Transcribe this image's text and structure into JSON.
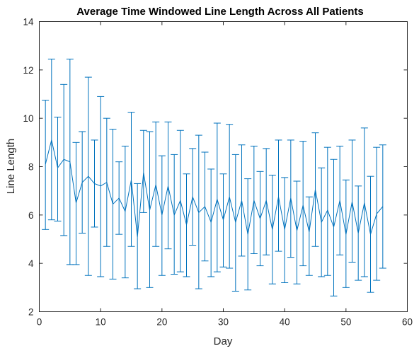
{
  "chart_data": {
    "type": "line",
    "title": "Average Time Windowed Line Length Across All Patients",
    "xlabel": "Day",
    "ylabel": "Line Length",
    "xlim": [
      0,
      60
    ],
    "ylim": [
      2,
      14
    ],
    "xticks": [
      "0",
      "10",
      "20",
      "30",
      "40",
      "50",
      "60"
    ],
    "yticks": [
      "2",
      "4",
      "6",
      "8",
      "10",
      "12",
      "14"
    ],
    "grid": false,
    "line_color": "#0072BD",
    "series": [
      {
        "x": [
          1,
          2,
          3,
          4,
          5,
          6,
          7,
          8,
          9,
          10,
          11,
          12,
          13,
          14,
          15,
          16,
          17,
          18,
          19,
          20,
          21,
          22,
          23,
          24,
          25,
          26,
          27,
          28,
          29,
          30,
          31,
          32,
          33,
          34,
          35,
          36,
          37,
          38,
          39,
          40,
          41,
          42,
          43,
          44,
          45,
          46,
          47,
          48,
          49,
          50,
          51,
          52,
          53,
          54,
          55,
          56
        ],
        "mean": [
          8.1,
          9.1,
          7.95,
          8.3,
          8.2,
          6.5,
          7.35,
          7.6,
          7.3,
          7.2,
          7.35,
          6.45,
          6.7,
          6.15,
          7.45,
          5.1,
          7.75,
          6.2,
          7.25,
          6.0,
          7.2,
          6.0,
          6.6,
          5.6,
          6.75,
          6.1,
          6.35,
          5.7,
          6.65,
          5.8,
          6.75,
          5.7,
          6.6,
          5.2,
          6.6,
          5.85,
          6.6,
          5.4,
          6.75,
          5.4,
          6.7,
          5.35,
          6.4,
          5.3,
          7.05,
          5.7,
          6.2,
          5.5,
          6.6,
          5.2,
          6.55,
          5.25,
          6.5,
          5.2,
          6.05,
          6.35
        ],
        "upper": [
          10.75,
          12.45,
          10.05,
          11.4,
          12.45,
          9.0,
          9.45,
          11.7,
          9.1,
          10.9,
          10.0,
          9.55,
          8.2,
          8.85,
          10.25,
          7.3,
          9.5,
          9.45,
          9.85,
          8.45,
          9.85,
          8.5,
          9.5,
          7.7,
          8.75,
          9.3,
          8.6,
          7.9,
          9.8,
          7.7,
          9.75,
          8.5,
          8.9,
          7.5,
          8.85,
          7.8,
          8.75,
          7.65,
          9.1,
          7.55,
          9.1,
          7.4,
          9.05,
          6.75,
          9.4,
          7.95,
          8.8,
          8.3,
          8.85,
          7.45,
          9.1,
          7.2,
          9.6,
          7.6,
          8.8,
          8.9
        ],
        "lower": [
          5.4,
          5.8,
          5.75,
          5.15,
          3.95,
          3.95,
          5.25,
          3.5,
          5.5,
          3.45,
          4.7,
          3.35,
          5.2,
          3.4,
          4.7,
          2.95,
          6.1,
          3.0,
          4.7,
          3.5,
          4.6,
          3.55,
          3.65,
          3.45,
          4.75,
          2.95,
          4.1,
          3.45,
          3.65,
          3.85,
          3.8,
          2.85,
          4.3,
          2.9,
          4.4,
          3.9,
          4.35,
          3.15,
          4.5,
          3.2,
          4.25,
          3.15,
          3.9,
          3.5,
          4.7,
          3.45,
          3.5,
          2.65,
          4.35,
          3.0,
          4.05,
          3.3,
          3.45,
          2.8,
          3.3,
          3.8
        ]
      }
    ]
  }
}
